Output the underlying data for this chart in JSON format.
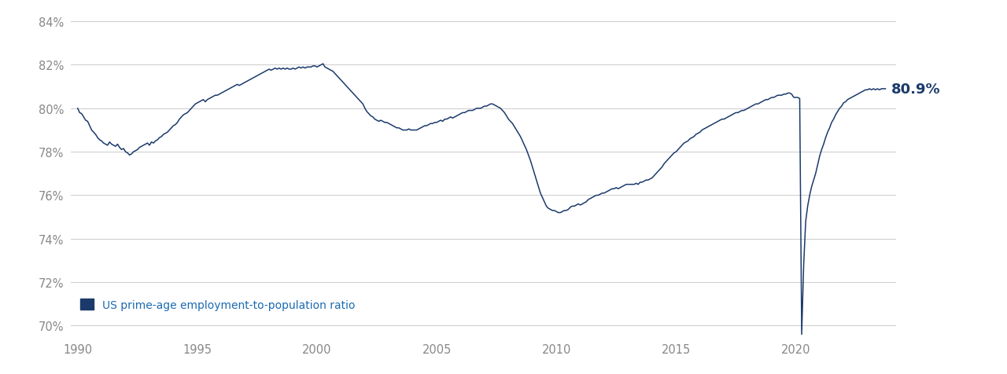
{
  "line_color": "#1b3a6b",
  "label_color": "#1b3a6b",
  "legend_text_color": "#1b6ab0",
  "bg_color": "#ffffff",
  "grid_color": "#cccccc",
  "ylim": [
    69.5,
    84.5
  ],
  "yticks": [
    70,
    72,
    74,
    76,
    78,
    80,
    82,
    84
  ],
  "ytick_labels": [
    "70%",
    "72%",
    "74%",
    "76%",
    "78%",
    "80%",
    "82%",
    "84%"
  ],
  "xtick_positions": [
    1990,
    1995,
    2000,
    2005,
    2010,
    2015,
    2020
  ],
  "xtick_labels": [
    "1990",
    "1995",
    "2000",
    "2005",
    "2010",
    "2015",
    "2020"
  ],
  "legend_label": "US prime-age employment-to-population ratio",
  "end_label": "80.9%",
  "xlim_left": 1989.7,
  "xlim_right": 2024.2,
  "data": [
    [
      1990.0,
      80.0
    ],
    [
      1990.083,
      79.8
    ],
    [
      1990.167,
      79.75
    ],
    [
      1990.25,
      79.6
    ],
    [
      1990.333,
      79.45
    ],
    [
      1990.417,
      79.4
    ],
    [
      1990.5,
      79.2
    ],
    [
      1990.583,
      79.0
    ],
    [
      1990.667,
      78.9
    ],
    [
      1990.75,
      78.8
    ],
    [
      1990.833,
      78.65
    ],
    [
      1990.917,
      78.55
    ],
    [
      1991.0,
      78.5
    ],
    [
      1991.083,
      78.4
    ],
    [
      1991.167,
      78.35
    ],
    [
      1991.25,
      78.3
    ],
    [
      1991.333,
      78.45
    ],
    [
      1991.417,
      78.35
    ],
    [
      1991.5,
      78.3
    ],
    [
      1991.583,
      78.25
    ],
    [
      1991.667,
      78.35
    ],
    [
      1991.75,
      78.2
    ],
    [
      1991.833,
      78.1
    ],
    [
      1991.917,
      78.15
    ],
    [
      1992.0,
      78.0
    ],
    [
      1992.083,
      77.95
    ],
    [
      1992.167,
      77.85
    ],
    [
      1992.25,
      77.9
    ],
    [
      1992.333,
      78.0
    ],
    [
      1992.417,
      78.05
    ],
    [
      1992.5,
      78.1
    ],
    [
      1992.583,
      78.2
    ],
    [
      1992.667,
      78.25
    ],
    [
      1992.75,
      78.3
    ],
    [
      1992.833,
      78.35
    ],
    [
      1992.917,
      78.4
    ],
    [
      1993.0,
      78.3
    ],
    [
      1993.083,
      78.45
    ],
    [
      1993.167,
      78.4
    ],
    [
      1993.25,
      78.5
    ],
    [
      1993.333,
      78.55
    ],
    [
      1993.417,
      78.65
    ],
    [
      1993.5,
      78.7
    ],
    [
      1993.583,
      78.8
    ],
    [
      1993.667,
      78.85
    ],
    [
      1993.75,
      78.9
    ],
    [
      1993.833,
      79.0
    ],
    [
      1993.917,
      79.1
    ],
    [
      1994.0,
      79.2
    ],
    [
      1994.083,
      79.25
    ],
    [
      1994.167,
      79.35
    ],
    [
      1994.25,
      79.5
    ],
    [
      1994.333,
      79.6
    ],
    [
      1994.417,
      79.7
    ],
    [
      1994.5,
      79.75
    ],
    [
      1994.583,
      79.8
    ],
    [
      1994.667,
      79.9
    ],
    [
      1994.75,
      80.0
    ],
    [
      1994.833,
      80.1
    ],
    [
      1994.917,
      80.2
    ],
    [
      1995.0,
      80.25
    ],
    [
      1995.083,
      80.3
    ],
    [
      1995.167,
      80.35
    ],
    [
      1995.25,
      80.4
    ],
    [
      1995.333,
      80.3
    ],
    [
      1995.417,
      80.4
    ],
    [
      1995.5,
      80.45
    ],
    [
      1995.583,
      80.5
    ],
    [
      1995.667,
      80.55
    ],
    [
      1995.75,
      80.6
    ],
    [
      1995.833,
      80.6
    ],
    [
      1995.917,
      80.65
    ],
    [
      1996.0,
      80.7
    ],
    [
      1996.083,
      80.75
    ],
    [
      1996.167,
      80.8
    ],
    [
      1996.25,
      80.85
    ],
    [
      1996.333,
      80.9
    ],
    [
      1996.417,
      80.95
    ],
    [
      1996.5,
      81.0
    ],
    [
      1996.583,
      81.05
    ],
    [
      1996.667,
      81.1
    ],
    [
      1996.75,
      81.05
    ],
    [
      1996.833,
      81.1
    ],
    [
      1996.917,
      81.15
    ],
    [
      1997.0,
      81.2
    ],
    [
      1997.083,
      81.25
    ],
    [
      1997.167,
      81.3
    ],
    [
      1997.25,
      81.35
    ],
    [
      1997.333,
      81.4
    ],
    [
      1997.417,
      81.45
    ],
    [
      1997.5,
      81.5
    ],
    [
      1997.583,
      81.55
    ],
    [
      1997.667,
      81.6
    ],
    [
      1997.75,
      81.65
    ],
    [
      1997.833,
      81.7
    ],
    [
      1997.917,
      81.75
    ],
    [
      1998.0,
      81.8
    ],
    [
      1998.083,
      81.75
    ],
    [
      1998.167,
      81.8
    ],
    [
      1998.25,
      81.85
    ],
    [
      1998.333,
      81.8
    ],
    [
      1998.417,
      81.85
    ],
    [
      1998.5,
      81.8
    ],
    [
      1998.583,
      81.85
    ],
    [
      1998.667,
      81.8
    ],
    [
      1998.75,
      81.85
    ],
    [
      1998.833,
      81.8
    ],
    [
      1998.917,
      81.8
    ],
    [
      1999.0,
      81.85
    ],
    [
      1999.083,
      81.8
    ],
    [
      1999.167,
      81.85
    ],
    [
      1999.25,
      81.9
    ],
    [
      1999.333,
      81.85
    ],
    [
      1999.417,
      81.9
    ],
    [
      1999.5,
      81.85
    ],
    [
      1999.583,
      81.9
    ],
    [
      1999.667,
      81.9
    ],
    [
      1999.75,
      81.9
    ],
    [
      1999.833,
      81.95
    ],
    [
      1999.917,
      81.95
    ],
    [
      2000.0,
      81.9
    ],
    [
      2000.083,
      81.95
    ],
    [
      2000.167,
      82.0
    ],
    [
      2000.25,
      82.05
    ],
    [
      2000.333,
      81.9
    ],
    [
      2000.417,
      81.85
    ],
    [
      2000.5,
      81.8
    ],
    [
      2000.583,
      81.75
    ],
    [
      2000.667,
      81.7
    ],
    [
      2000.75,
      81.6
    ],
    [
      2000.833,
      81.5
    ],
    [
      2000.917,
      81.4
    ],
    [
      2001.0,
      81.3
    ],
    [
      2001.083,
      81.2
    ],
    [
      2001.167,
      81.1
    ],
    [
      2001.25,
      81.0
    ],
    [
      2001.333,
      80.9
    ],
    [
      2001.417,
      80.8
    ],
    [
      2001.5,
      80.7
    ],
    [
      2001.583,
      80.6
    ],
    [
      2001.667,
      80.5
    ],
    [
      2001.75,
      80.4
    ],
    [
      2001.833,
      80.3
    ],
    [
      2001.917,
      80.2
    ],
    [
      2002.0,
      80.0
    ],
    [
      2002.083,
      79.85
    ],
    [
      2002.167,
      79.75
    ],
    [
      2002.25,
      79.65
    ],
    [
      2002.333,
      79.6
    ],
    [
      2002.417,
      79.5
    ],
    [
      2002.5,
      79.45
    ],
    [
      2002.583,
      79.4
    ],
    [
      2002.667,
      79.45
    ],
    [
      2002.75,
      79.4
    ],
    [
      2002.833,
      79.35
    ],
    [
      2002.917,
      79.35
    ],
    [
      2003.0,
      79.3
    ],
    [
      2003.083,
      79.25
    ],
    [
      2003.167,
      79.2
    ],
    [
      2003.25,
      79.15
    ],
    [
      2003.333,
      79.1
    ],
    [
      2003.417,
      79.1
    ],
    [
      2003.5,
      79.05
    ],
    [
      2003.583,
      79.0
    ],
    [
      2003.667,
      79.0
    ],
    [
      2003.75,
      79.0
    ],
    [
      2003.833,
      79.05
    ],
    [
      2003.917,
      79.0
    ],
    [
      2004.0,
      79.0
    ],
    [
      2004.083,
      79.0
    ],
    [
      2004.167,
      79.0
    ],
    [
      2004.25,
      79.05
    ],
    [
      2004.333,
      79.1
    ],
    [
      2004.417,
      79.15
    ],
    [
      2004.5,
      79.2
    ],
    [
      2004.583,
      79.2
    ],
    [
      2004.667,
      79.25
    ],
    [
      2004.75,
      79.3
    ],
    [
      2004.833,
      79.3
    ],
    [
      2004.917,
      79.35
    ],
    [
      2005.0,
      79.35
    ],
    [
      2005.083,
      79.4
    ],
    [
      2005.167,
      79.45
    ],
    [
      2005.25,
      79.4
    ],
    [
      2005.333,
      79.5
    ],
    [
      2005.417,
      79.5
    ],
    [
      2005.5,
      79.55
    ],
    [
      2005.583,
      79.6
    ],
    [
      2005.667,
      79.55
    ],
    [
      2005.75,
      79.6
    ],
    [
      2005.833,
      79.65
    ],
    [
      2005.917,
      79.7
    ],
    [
      2006.0,
      79.75
    ],
    [
      2006.083,
      79.8
    ],
    [
      2006.167,
      79.8
    ],
    [
      2006.25,
      79.85
    ],
    [
      2006.333,
      79.9
    ],
    [
      2006.417,
      79.9
    ],
    [
      2006.5,
      79.9
    ],
    [
      2006.583,
      79.95
    ],
    [
      2006.667,
      80.0
    ],
    [
      2006.75,
      80.0
    ],
    [
      2006.833,
      80.0
    ],
    [
      2006.917,
      80.05
    ],
    [
      2007.0,
      80.1
    ],
    [
      2007.083,
      80.1
    ],
    [
      2007.167,
      80.15
    ],
    [
      2007.25,
      80.2
    ],
    [
      2007.333,
      80.2
    ],
    [
      2007.417,
      80.15
    ],
    [
      2007.5,
      80.1
    ],
    [
      2007.583,
      80.05
    ],
    [
      2007.667,
      80.0
    ],
    [
      2007.75,
      79.9
    ],
    [
      2007.833,
      79.8
    ],
    [
      2007.917,
      79.65
    ],
    [
      2008.0,
      79.5
    ],
    [
      2008.083,
      79.4
    ],
    [
      2008.167,
      79.3
    ],
    [
      2008.25,
      79.15
    ],
    [
      2008.333,
      79.0
    ],
    [
      2008.417,
      78.85
    ],
    [
      2008.5,
      78.7
    ],
    [
      2008.583,
      78.5
    ],
    [
      2008.667,
      78.3
    ],
    [
      2008.75,
      78.1
    ],
    [
      2008.833,
      77.85
    ],
    [
      2008.917,
      77.6
    ],
    [
      2009.0,
      77.3
    ],
    [
      2009.083,
      77.0
    ],
    [
      2009.167,
      76.7
    ],
    [
      2009.25,
      76.4
    ],
    [
      2009.333,
      76.1
    ],
    [
      2009.417,
      75.9
    ],
    [
      2009.5,
      75.7
    ],
    [
      2009.583,
      75.5
    ],
    [
      2009.667,
      75.4
    ],
    [
      2009.75,
      75.35
    ],
    [
      2009.833,
      75.3
    ],
    [
      2009.917,
      75.3
    ],
    [
      2010.0,
      75.25
    ],
    [
      2010.083,
      75.2
    ],
    [
      2010.167,
      75.2
    ],
    [
      2010.25,
      75.25
    ],
    [
      2010.333,
      75.3
    ],
    [
      2010.417,
      75.3
    ],
    [
      2010.5,
      75.35
    ],
    [
      2010.583,
      75.45
    ],
    [
      2010.667,
      75.5
    ],
    [
      2010.75,
      75.5
    ],
    [
      2010.833,
      75.55
    ],
    [
      2010.917,
      75.6
    ],
    [
      2011.0,
      75.55
    ],
    [
      2011.083,
      75.6
    ],
    [
      2011.167,
      75.65
    ],
    [
      2011.25,
      75.7
    ],
    [
      2011.333,
      75.8
    ],
    [
      2011.417,
      75.85
    ],
    [
      2011.5,
      75.9
    ],
    [
      2011.583,
      75.95
    ],
    [
      2011.667,
      76.0
    ],
    [
      2011.75,
      76.0
    ],
    [
      2011.833,
      76.05
    ],
    [
      2011.917,
      76.1
    ],
    [
      2012.0,
      76.1
    ],
    [
      2012.083,
      76.15
    ],
    [
      2012.167,
      76.2
    ],
    [
      2012.25,
      76.25
    ],
    [
      2012.333,
      76.3
    ],
    [
      2012.417,
      76.3
    ],
    [
      2012.5,
      76.35
    ],
    [
      2012.583,
      76.3
    ],
    [
      2012.667,
      76.35
    ],
    [
      2012.75,
      76.4
    ],
    [
      2012.833,
      76.45
    ],
    [
      2012.917,
      76.5
    ],
    [
      2013.0,
      76.5
    ],
    [
      2013.083,
      76.5
    ],
    [
      2013.167,
      76.5
    ],
    [
      2013.25,
      76.5
    ],
    [
      2013.333,
      76.55
    ],
    [
      2013.417,
      76.5
    ],
    [
      2013.5,
      76.6
    ],
    [
      2013.583,
      76.6
    ],
    [
      2013.667,
      76.65
    ],
    [
      2013.75,
      76.7
    ],
    [
      2013.833,
      76.7
    ],
    [
      2013.917,
      76.75
    ],
    [
      2014.0,
      76.8
    ],
    [
      2014.083,
      76.9
    ],
    [
      2014.167,
      77.0
    ],
    [
      2014.25,
      77.1
    ],
    [
      2014.333,
      77.2
    ],
    [
      2014.417,
      77.3
    ],
    [
      2014.5,
      77.45
    ],
    [
      2014.583,
      77.55
    ],
    [
      2014.667,
      77.65
    ],
    [
      2014.75,
      77.75
    ],
    [
      2014.833,
      77.85
    ],
    [
      2014.917,
      77.95
    ],
    [
      2015.0,
      78.0
    ],
    [
      2015.083,
      78.1
    ],
    [
      2015.167,
      78.2
    ],
    [
      2015.25,
      78.3
    ],
    [
      2015.333,
      78.4
    ],
    [
      2015.417,
      78.45
    ],
    [
      2015.5,
      78.5
    ],
    [
      2015.583,
      78.6
    ],
    [
      2015.667,
      78.65
    ],
    [
      2015.75,
      78.7
    ],
    [
      2015.833,
      78.8
    ],
    [
      2015.917,
      78.85
    ],
    [
      2016.0,
      78.9
    ],
    [
      2016.083,
      79.0
    ],
    [
      2016.167,
      79.05
    ],
    [
      2016.25,
      79.1
    ],
    [
      2016.333,
      79.15
    ],
    [
      2016.417,
      79.2
    ],
    [
      2016.5,
      79.25
    ],
    [
      2016.583,
      79.3
    ],
    [
      2016.667,
      79.35
    ],
    [
      2016.75,
      79.4
    ],
    [
      2016.833,
      79.45
    ],
    [
      2016.917,
      79.5
    ],
    [
      2017.0,
      79.5
    ],
    [
      2017.083,
      79.55
    ],
    [
      2017.167,
      79.6
    ],
    [
      2017.25,
      79.65
    ],
    [
      2017.333,
      79.7
    ],
    [
      2017.417,
      79.75
    ],
    [
      2017.5,
      79.8
    ],
    [
      2017.583,
      79.8
    ],
    [
      2017.667,
      79.85
    ],
    [
      2017.75,
      79.9
    ],
    [
      2017.833,
      79.9
    ],
    [
      2017.917,
      79.95
    ],
    [
      2018.0,
      80.0
    ],
    [
      2018.083,
      80.05
    ],
    [
      2018.167,
      80.1
    ],
    [
      2018.25,
      80.15
    ],
    [
      2018.333,
      80.2
    ],
    [
      2018.417,
      80.2
    ],
    [
      2018.5,
      80.25
    ],
    [
      2018.583,
      80.3
    ],
    [
      2018.667,
      80.35
    ],
    [
      2018.75,
      80.4
    ],
    [
      2018.833,
      80.4
    ],
    [
      2018.917,
      80.45
    ],
    [
      2019.0,
      80.5
    ],
    [
      2019.083,
      80.5
    ],
    [
      2019.167,
      80.55
    ],
    [
      2019.25,
      80.6
    ],
    [
      2019.333,
      80.6
    ],
    [
      2019.417,
      80.6
    ],
    [
      2019.5,
      80.65
    ],
    [
      2019.583,
      80.65
    ],
    [
      2019.667,
      80.7
    ],
    [
      2019.75,
      80.7
    ],
    [
      2019.833,
      80.65
    ],
    [
      2019.917,
      80.5
    ],
    [
      2020.0,
      80.5
    ],
    [
      2020.083,
      80.5
    ],
    [
      2020.167,
      80.45
    ],
    [
      2020.25,
      69.6
    ],
    [
      2020.333,
      72.8
    ],
    [
      2020.417,
      74.8
    ],
    [
      2020.5,
      75.5
    ],
    [
      2020.583,
      76.0
    ],
    [
      2020.667,
      76.4
    ],
    [
      2020.75,
      76.7
    ],
    [
      2020.833,
      77.0
    ],
    [
      2020.917,
      77.4
    ],
    [
      2021.0,
      77.8
    ],
    [
      2021.083,
      78.1
    ],
    [
      2021.167,
      78.35
    ],
    [
      2021.25,
      78.65
    ],
    [
      2021.333,
      78.9
    ],
    [
      2021.417,
      79.1
    ],
    [
      2021.5,
      79.35
    ],
    [
      2021.583,
      79.5
    ],
    [
      2021.667,
      79.7
    ],
    [
      2021.75,
      79.85
    ],
    [
      2021.833,
      80.0
    ],
    [
      2021.917,
      80.1
    ],
    [
      2022.0,
      80.25
    ],
    [
      2022.083,
      80.3
    ],
    [
      2022.167,
      80.4
    ],
    [
      2022.25,
      80.45
    ],
    [
      2022.333,
      80.5
    ],
    [
      2022.417,
      80.55
    ],
    [
      2022.5,
      80.6
    ],
    [
      2022.583,
      80.65
    ],
    [
      2022.667,
      80.7
    ],
    [
      2022.75,
      80.75
    ],
    [
      2022.833,
      80.8
    ],
    [
      2022.917,
      80.85
    ],
    [
      2023.0,
      80.85
    ],
    [
      2023.083,
      80.9
    ],
    [
      2023.167,
      80.85
    ],
    [
      2023.25,
      80.9
    ],
    [
      2023.333,
      80.85
    ],
    [
      2023.417,
      80.9
    ],
    [
      2023.5,
      80.85
    ],
    [
      2023.583,
      80.9
    ],
    [
      2023.667,
      80.9
    ],
    [
      2023.75,
      80.9
    ]
  ]
}
